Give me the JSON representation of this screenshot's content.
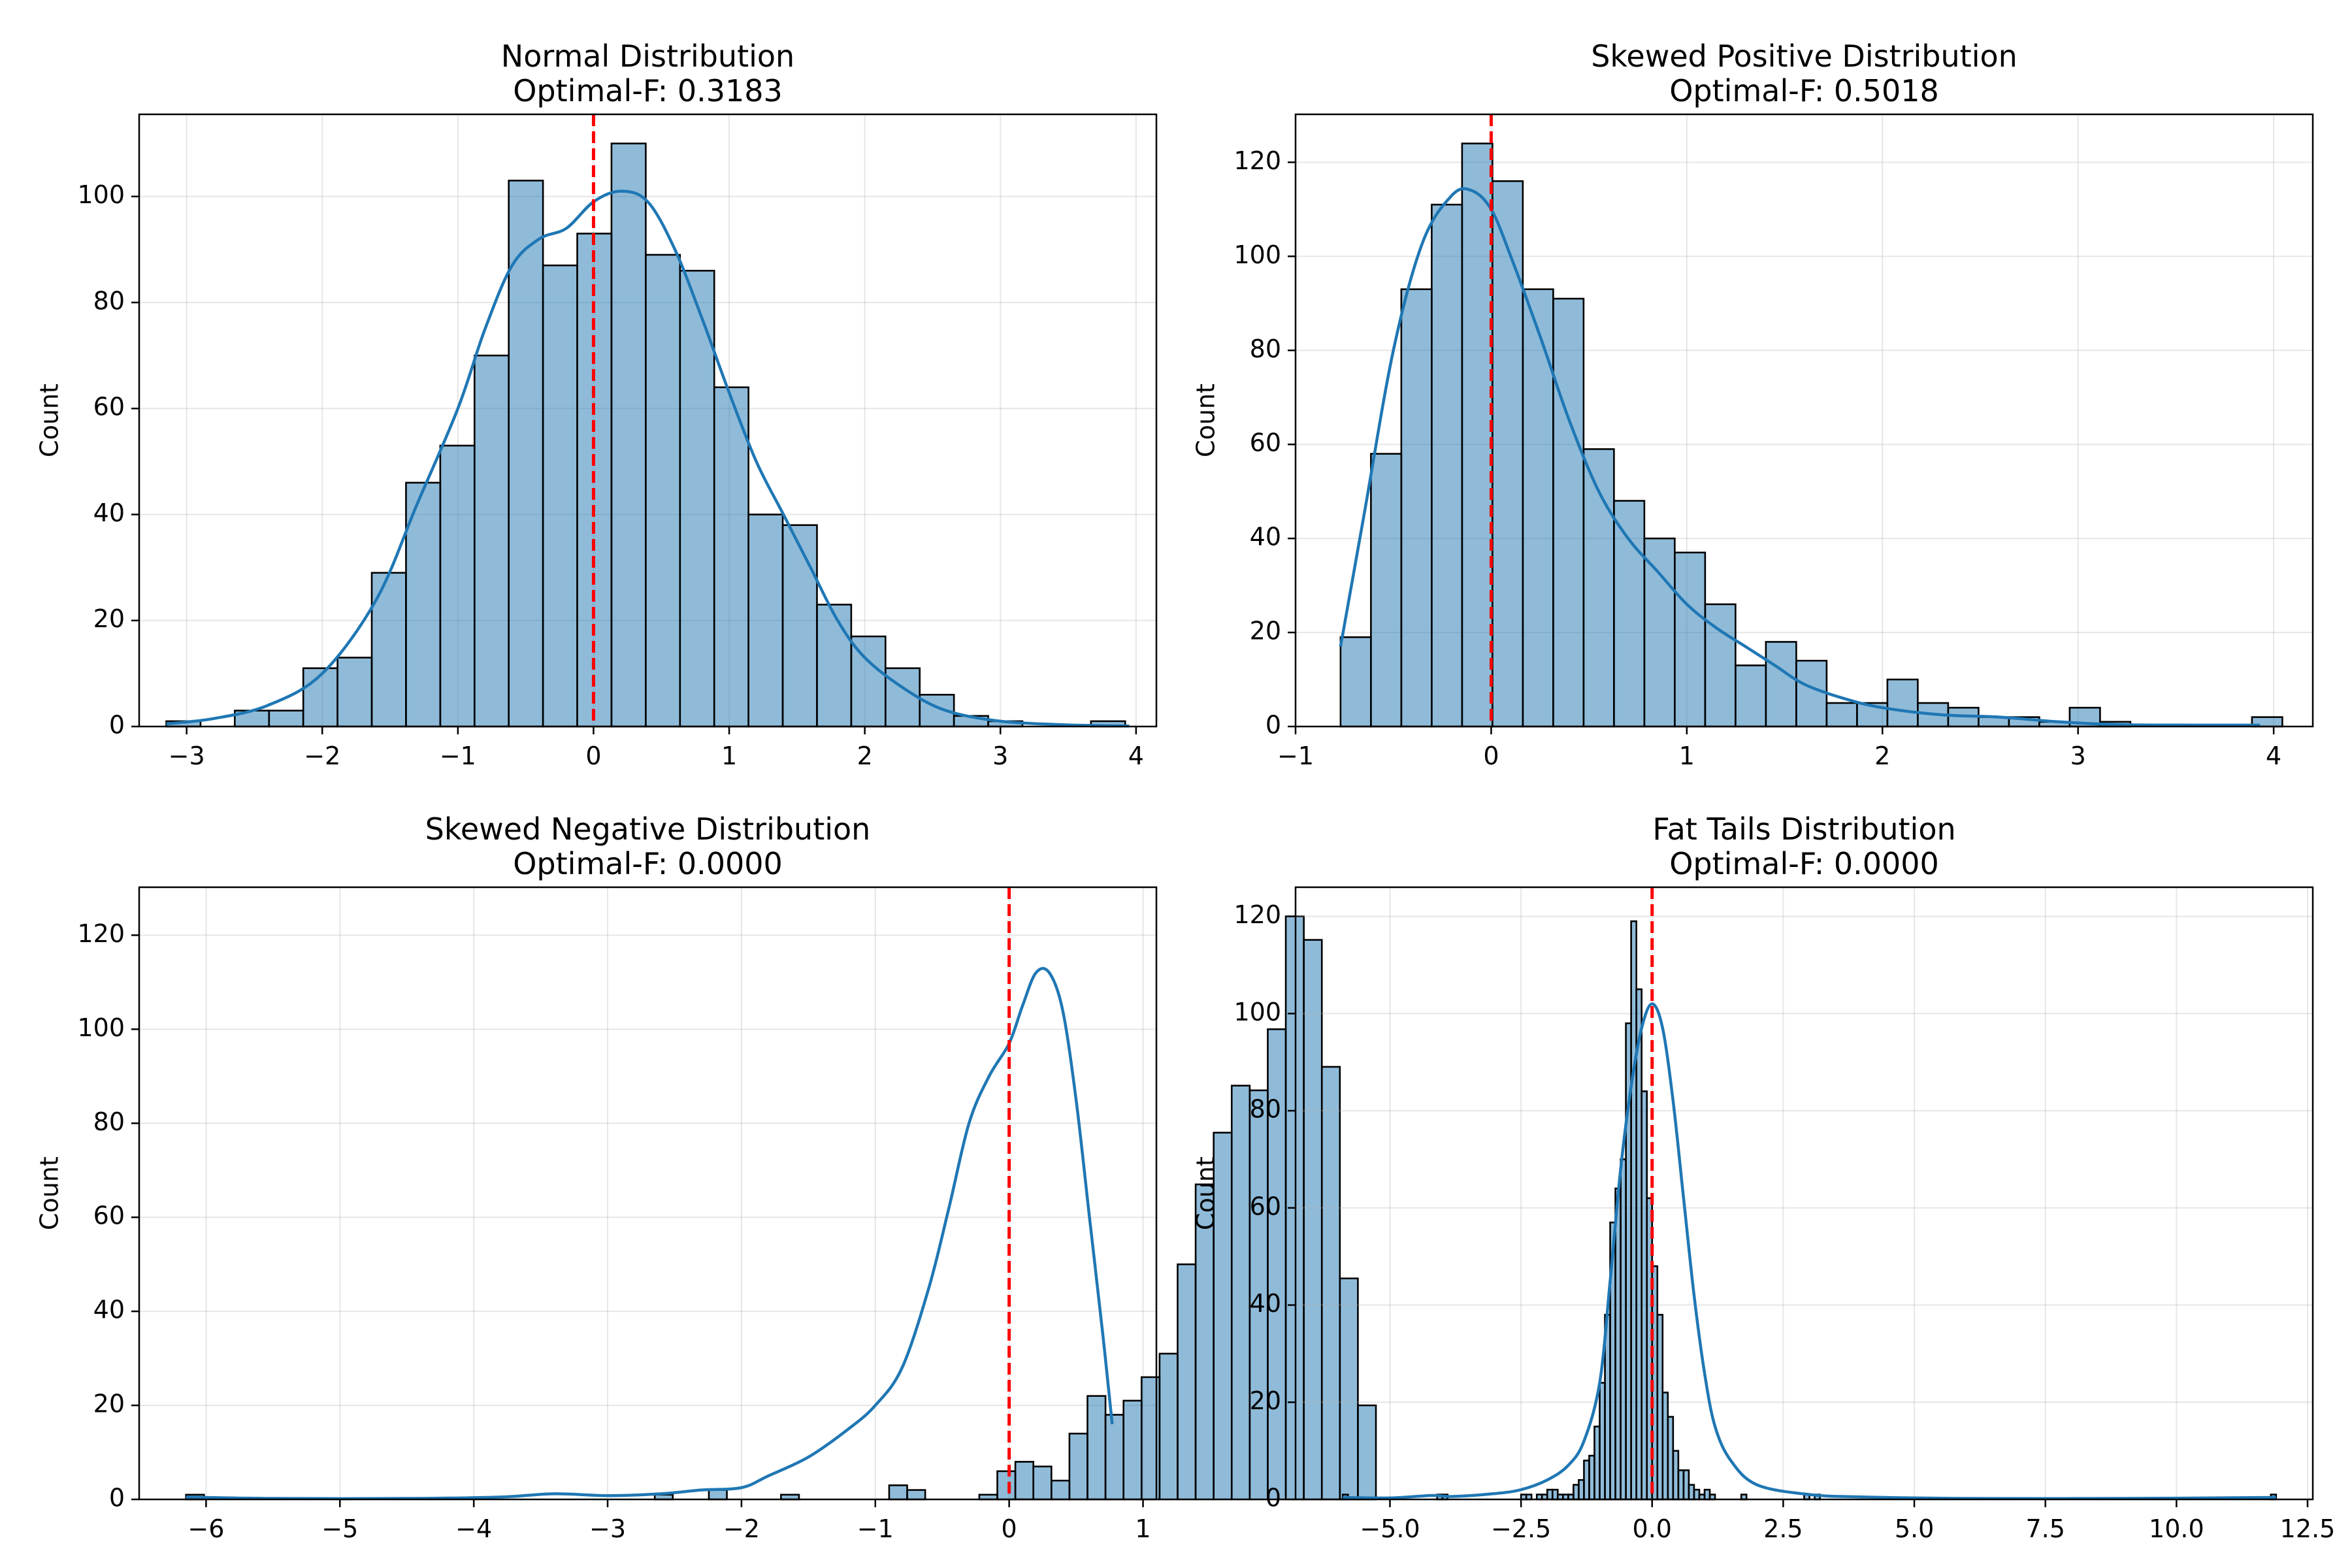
{
  "chart_data": [
    {
      "type": "histogram",
      "title": "Normal Distribution",
      "subtitle": "Optimal-F: 0.3183",
      "xlabel": "",
      "ylabel": "Count",
      "xlim": [
        -3.35,
        4.15
      ],
      "ylim": [
        0,
        115.5
      ],
      "xticks": [
        -3,
        -2,
        -1,
        0,
        1,
        2,
        3,
        4
      ],
      "yticks": [
        0,
        20,
        40,
        60,
        80,
        100
      ],
      "grid": true,
      "vline_x": 0,
      "bin_start": -3.15,
      "bin_width": 0.2525,
      "counts": [
        1,
        0,
        3,
        3,
        11,
        13,
        29,
        46,
        53,
        70,
        103,
        87,
        93,
        110,
        89,
        86,
        64,
        40,
        38,
        23,
        17,
        11,
        6,
        2,
        1,
        0,
        0,
        1
      ],
      "kde": [
        [
          -3.15,
          0.5
        ],
        [
          -2.8,
          1.5
        ],
        [
          -2.4,
          4
        ],
        [
          -2.0,
          10
        ],
        [
          -1.6,
          24
        ],
        [
          -1.3,
          42
        ],
        [
          -1.0,
          60
        ],
        [
          -0.8,
          75
        ],
        [
          -0.6,
          87
        ],
        [
          -0.4,
          92
        ],
        [
          -0.2,
          94
        ],
        [
          0.0,
          99
        ],
        [
          0.2,
          101
        ],
        [
          0.4,
          99
        ],
        [
          0.6,
          90
        ],
        [
          0.8,
          77
        ],
        [
          1.0,
          63
        ],
        [
          1.2,
          50
        ],
        [
          1.4,
          40
        ],
        [
          1.6,
          30
        ],
        [
          1.8,
          20
        ],
        [
          2.0,
          13
        ],
        [
          2.3,
          7
        ],
        [
          2.6,
          3
        ],
        [
          3.0,
          1
        ],
        [
          3.5,
          0.3
        ],
        [
          3.95,
          0.1
        ]
      ]
    },
    {
      "type": "histogram",
      "title": "Skewed Positive Distribution",
      "subtitle": "Optimal-F: 0.5018",
      "xlabel": "",
      "ylabel": "Count",
      "xlim": [
        -1.0,
        4.2
      ],
      "ylim": [
        0,
        130.2
      ],
      "xticks": [
        -1,
        0,
        1,
        2,
        3,
        4
      ],
      "yticks": [
        0,
        20,
        40,
        60,
        80,
        100,
        120
      ],
      "grid": true,
      "vline_x": 0,
      "bin_start": -0.77,
      "bin_width": 0.1553,
      "counts": [
        19,
        58,
        93,
        111,
        124,
        116,
        93,
        91,
        59,
        48,
        40,
        37,
        26,
        13,
        18,
        14,
        5,
        5,
        10,
        5,
        4,
        2,
        2,
        1,
        4,
        1,
        0,
        0,
        0,
        0,
        2
      ],
      "kde": [
        [
          -0.77,
          17
        ],
        [
          -0.65,
          45
        ],
        [
          -0.5,
          80
        ],
        [
          -0.35,
          103
        ],
        [
          -0.2,
          113
        ],
        [
          -0.1,
          114
        ],
        [
          0.0,
          110
        ],
        [
          0.1,
          100
        ],
        [
          0.25,
          83
        ],
        [
          0.4,
          65
        ],
        [
          0.55,
          50
        ],
        [
          0.7,
          40
        ],
        [
          0.85,
          33
        ],
        [
          1.0,
          26
        ],
        [
          1.15,
          21
        ],
        [
          1.3,
          17
        ],
        [
          1.45,
          13
        ],
        [
          1.6,
          9
        ],
        [
          1.8,
          6
        ],
        [
          2.0,
          4
        ],
        [
          2.3,
          2.5
        ],
        [
          2.6,
          2
        ],
        [
          2.9,
          1
        ],
        [
          3.2,
          0.4
        ],
        [
          3.6,
          0.3
        ],
        [
          3.93,
          0.3
        ]
      ]
    },
    {
      "type": "histogram",
      "title": "Skewed Negative Distribution",
      "subtitle": "Optimal-F: 0.0000",
      "xlabel": "",
      "ylabel": "Count",
      "xlim": [
        -6.5,
        1.1
      ],
      "ylim": [
        0,
        130.2
      ],
      "xticks": [
        -6,
        -5,
        -4,
        -3,
        -2,
        -1,
        0,
        1
      ],
      "yticks": [
        0,
        20,
        40,
        60,
        80,
        100,
        120
      ],
      "grid": true,
      "vline_x": 0,
      "bin_start": -6.15,
      "bin_width": 0.1347,
      "counts": [
        1,
        0,
        0,
        0,
        0,
        0,
        0,
        0,
        0,
        0,
        0,
        0,
        0,
        0,
        0,
        0,
        0,
        0,
        0,
        0,
        0,
        0,
        0,
        0,
        0,
        0,
        1,
        0,
        0,
        2,
        0,
        0,
        0,
        1,
        0,
        0,
        0,
        0,
        0,
        3,
        2,
        0,
        0,
        0,
        1,
        6,
        8,
        7,
        4,
        14,
        22,
        18,
        21,
        26,
        31,
        50,
        67,
        78,
        88,
        87,
        100,
        124,
        119,
        92,
        47,
        20
      ],
      "kde": [
        [
          -6.15,
          0.5
        ],
        [
          -5.5,
          0.2
        ],
        [
          -4.5,
          0.2
        ],
        [
          -3.8,
          0.5
        ],
        [
          -3.4,
          1.2
        ],
        [
          -3.0,
          0.8
        ],
        [
          -2.6,
          1.2
        ],
        [
          -2.3,
          2
        ],
        [
          -2.0,
          2.5
        ],
        [
          -1.8,
          5
        ],
        [
          -1.5,
          9
        ],
        [
          -1.2,
          15
        ],
        [
          -1.0,
          20
        ],
        [
          -0.8,
          28
        ],
        [
          -0.6,
          45
        ],
        [
          -0.45,
          62
        ],
        [
          -0.3,
          80
        ],
        [
          -0.15,
          90
        ],
        [
          0.0,
          97
        ],
        [
          0.1,
          105
        ],
        [
          0.2,
          112
        ],
        [
          0.3,
          112
        ],
        [
          0.4,
          104
        ],
        [
          0.5,
          85
        ],
        [
          0.6,
          60
        ],
        [
          0.7,
          35
        ],
        [
          0.77,
          16
        ]
      ]
    },
    {
      "type": "histogram",
      "title": "Fat Tails Distribution",
      "subtitle": "Optimal-F: 0.0000",
      "xlabel": "",
      "ylabel": "Count",
      "xlim": [
        -6.8,
        12.6
      ],
      "ylim": [
        0,
        126
      ],
      "xticks": [
        -5.0,
        -2.5,
        0.0,
        2.5,
        5.0,
        7.5,
        10.0,
        12.5
      ],
      "xtick_labels": [
        "−5.0",
        "−2.5",
        "0.0",
        "2.5",
        "5.0",
        "7.5",
        "10.0",
        "12.5"
      ],
      "yticks": [
        0,
        20,
        40,
        60,
        80,
        100,
        120
      ],
      "grid": true,
      "vline_x": 0,
      "bin_start": -5.9,
      "bin_width": 0.1,
      "counts": [
        1,
        0,
        0,
        0,
        0,
        0,
        0,
        0,
        0,
        0,
        0,
        0,
        0,
        0,
        0,
        0,
        0,
        0,
        1,
        1,
        0,
        0,
        0,
        0,
        0,
        0,
        0,
        0,
        0,
        0,
        0,
        0,
        0,
        0,
        1,
        1,
        0,
        1,
        1,
        2,
        2,
        1,
        1,
        1,
        3,
        4,
        8,
        9,
        15,
        24,
        38,
        57,
        64,
        70,
        98,
        119,
        105,
        84,
        62,
        48,
        38,
        22,
        17,
        10,
        6,
        6,
        3,
        2,
        1,
        2,
        1,
        0,
        0,
        0,
        0,
        0,
        1,
        0,
        0,
        0,
        0,
        0,
        0,
        0,
        0,
        0,
        0,
        0,
        1,
        0,
        1
      ],
      "extra_bins": [
        [
          11.8,
          1
        ]
      ],
      "kde": [
        [
          -5.9,
          0.4
        ],
        [
          -5.0,
          0.3
        ],
        [
          -4.2,
          0.8
        ],
        [
          -3.8,
          0.6
        ],
        [
          -3.0,
          1.2
        ],
        [
          -2.5,
          2
        ],
        [
          -2.0,
          4
        ],
        [
          -1.6,
          7
        ],
        [
          -1.3,
          12
        ],
        [
          -1.0,
          24
        ],
        [
          -0.8,
          45
        ],
        [
          -0.6,
          68
        ],
        [
          -0.4,
          85
        ],
        [
          -0.2,
          97
        ],
        [
          0.0,
          102
        ],
        [
          0.2,
          97
        ],
        [
          0.4,
          82
        ],
        [
          0.6,
          62
        ],
        [
          0.8,
          42
        ],
        [
          1.0,
          26
        ],
        [
          1.2,
          15
        ],
        [
          1.5,
          8
        ],
        [
          2.0,
          3
        ],
        [
          3.0,
          1
        ],
        [
          4.0,
          0.5
        ],
        [
          6.0,
          0.2
        ],
        [
          9.0,
          0.2
        ],
        [
          11.9,
          0.4
        ]
      ]
    }
  ]
}
